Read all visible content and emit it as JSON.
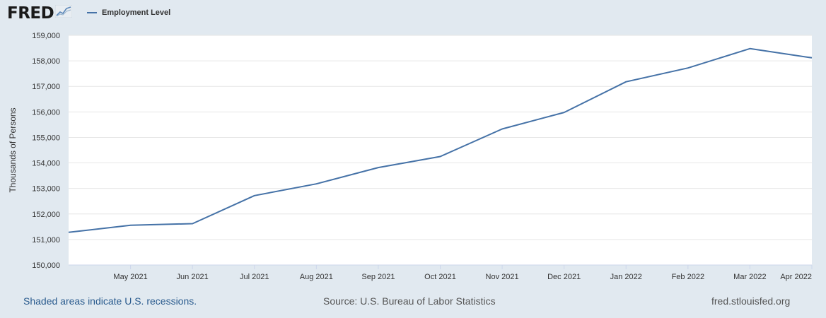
{
  "header": {
    "logo_text": "FRED",
    "logo_icon": "fred-chart-icon",
    "legend_label": "Employment Level"
  },
  "colors": {
    "series": "#4572a7",
    "plot_background": "#ffffff",
    "page_background": "#e1e9f0",
    "gridline": "#e6e6e6"
  },
  "footer": {
    "recessions_note": "Shaded areas indicate U.S. recessions.",
    "source": "Source: U.S. Bureau of Labor Statistics",
    "site": "fred.stlouisfed.org"
  },
  "chart_data": {
    "type": "line",
    "title": "",
    "xlabel": "",
    "ylabel": "Thousands of Persons",
    "ylim": [
      150000,
      159000
    ],
    "yticks": [
      150000,
      151000,
      152000,
      153000,
      154000,
      155000,
      156000,
      157000,
      158000,
      159000
    ],
    "ytick_labels": [
      "150,000",
      "151,000",
      "152,000",
      "153,000",
      "154,000",
      "155,000",
      "156,000",
      "157,000",
      "158,000",
      "159,000"
    ],
    "x": [
      "2021-04-01",
      "2021-05-01",
      "2021-06-01",
      "2021-07-01",
      "2021-08-01",
      "2021-09-01",
      "2021-10-01",
      "2021-11-01",
      "2021-12-01",
      "2022-01-01",
      "2022-02-01",
      "2022-03-01",
      "2022-04-01"
    ],
    "xtick_labels": [
      "",
      "May 2021",
      "Jun 2021",
      "Jul 2021",
      "Aug 2021",
      "Sep 2021",
      "Oct 2021",
      "Nov 2021",
      "Dec 2021",
      "Jan 2022",
      "Feb 2022",
      "Mar 2022",
      "Apr 2022"
    ],
    "grid": true,
    "legend": "top-left",
    "series": [
      {
        "name": "Employment Level",
        "values": [
          151280,
          151560,
          151620,
          152720,
          153180,
          153820,
          154250,
          155330,
          155980,
          157180,
          157720,
          158480,
          158120
        ]
      }
    ]
  }
}
